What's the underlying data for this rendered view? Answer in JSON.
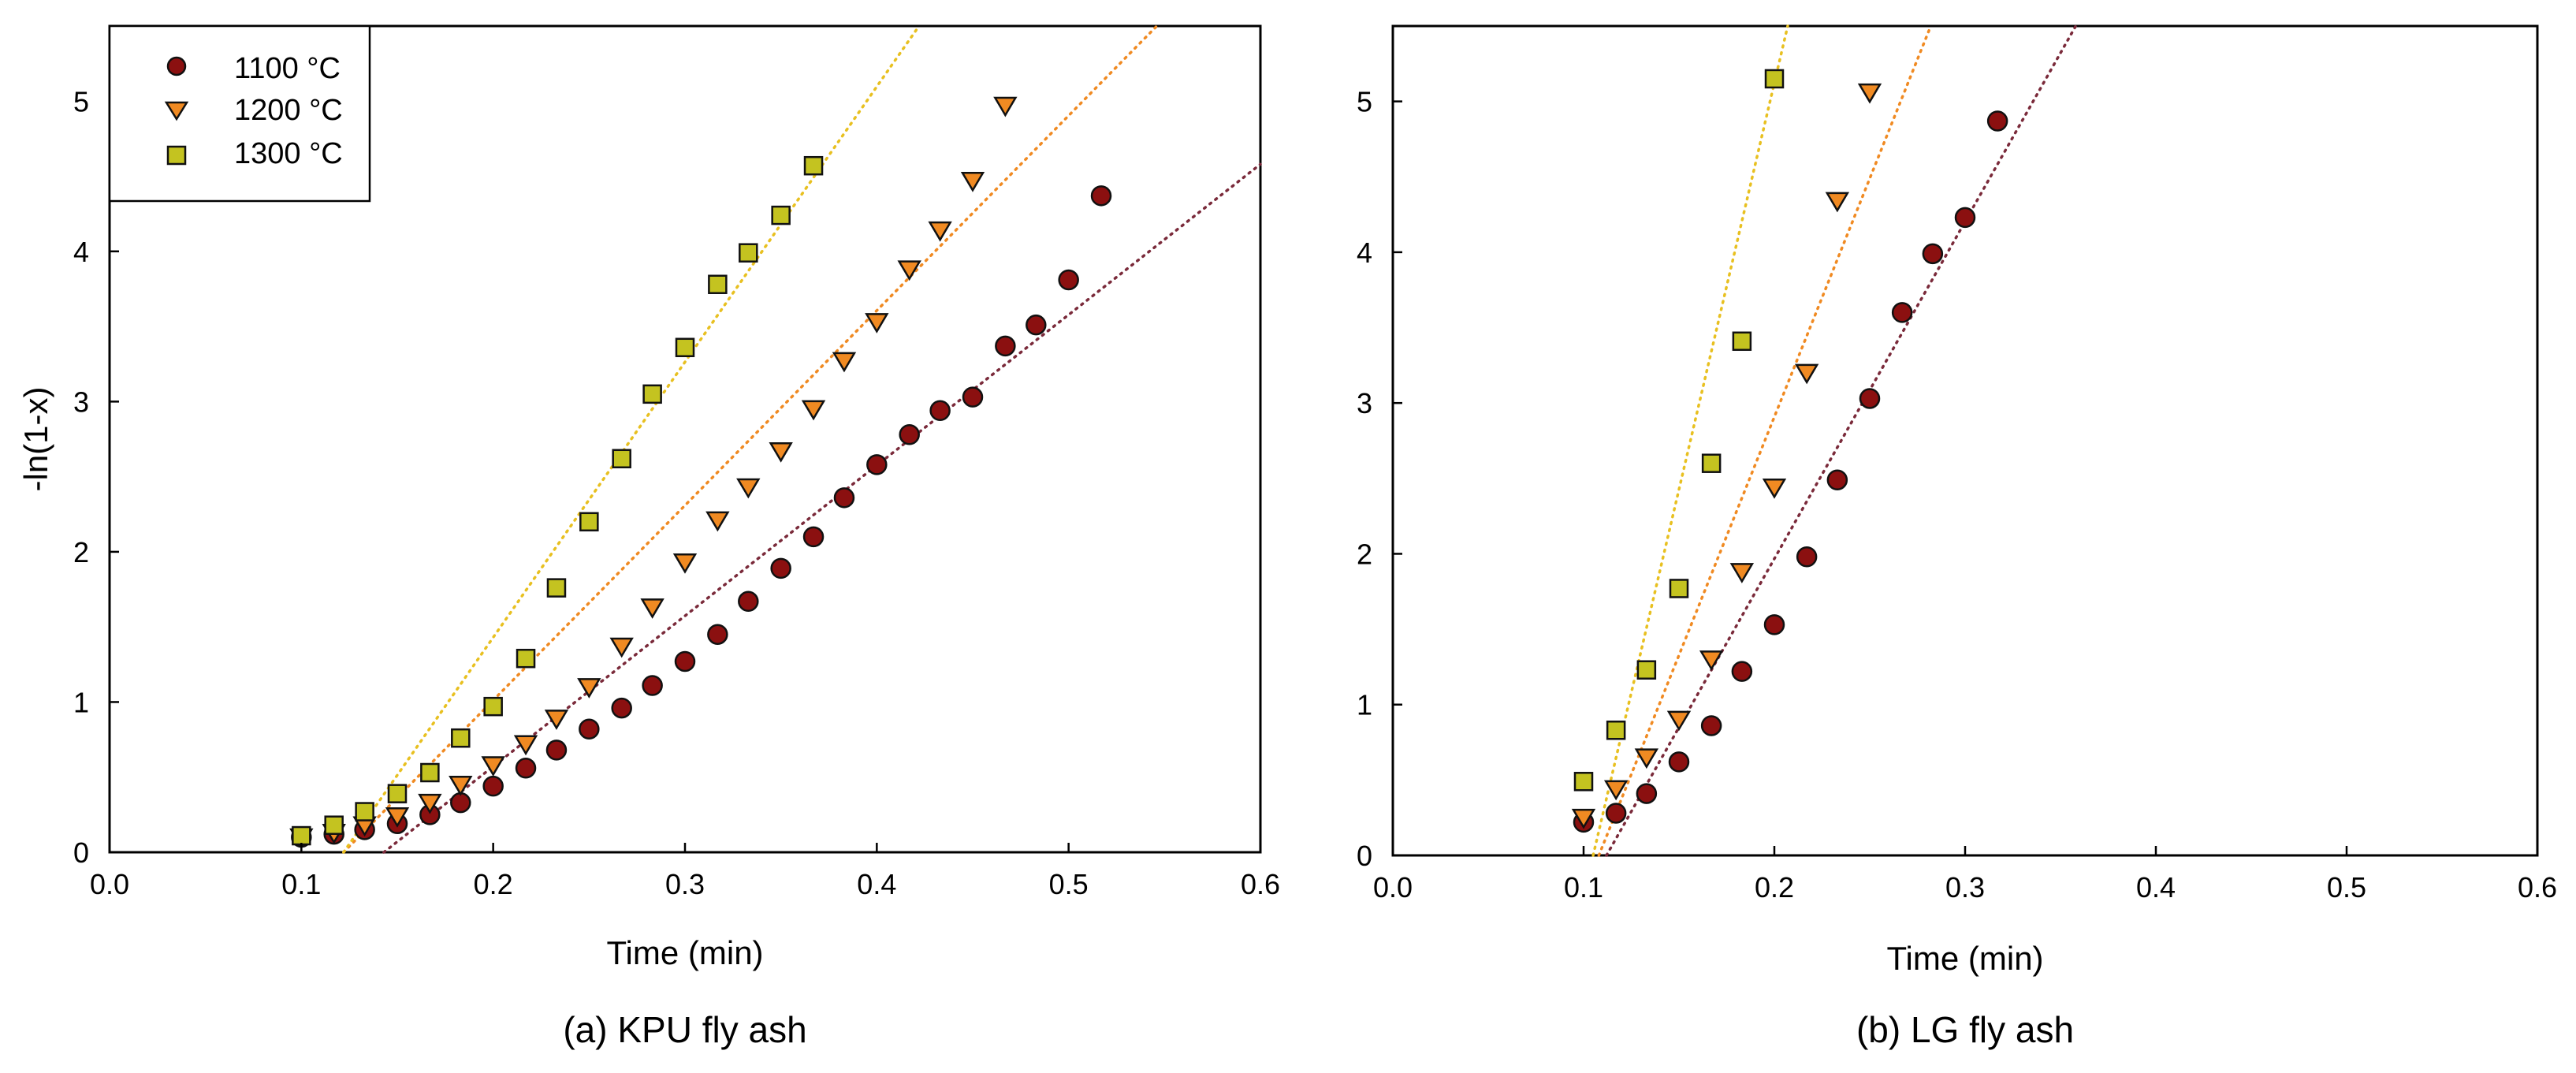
{
  "chart_data": [
    {
      "type": "scatter",
      "caption": "(a) KPU fly ash",
      "xlabel": "Time (min)",
      "ylabel": "-ln(1-x)",
      "xlim": [
        0.0,
        0.6
      ],
      "ylim": [
        0,
        5.5
      ],
      "xticks": [
        "0.0",
        "0.1",
        "0.2",
        "0.3",
        "0.4",
        "0.5",
        "0.6"
      ],
      "yticks": [
        "0",
        "1",
        "2",
        "3",
        "4",
        "5"
      ],
      "legend": {
        "placement": "top-left",
        "entries": [
          "1100 °C",
          "1200 °C",
          "1300 °C"
        ]
      },
      "series": [
        {
          "name": "1100 °C",
          "marker": "circle",
          "color": "#8b1010",
          "x": [
            0.1,
            0.117,
            0.133,
            0.15,
            0.167,
            0.183,
            0.2,
            0.217,
            0.233,
            0.25,
            0.267,
            0.283,
            0.3,
            0.317,
            0.333,
            0.35,
            0.367,
            0.383,
            0.4,
            0.417,
            0.433,
            0.45,
            0.467,
            0.483,
            0.5,
            0.517
          ],
          "y": [
            0.1,
            0.12,
            0.15,
            0.19,
            0.25,
            0.33,
            0.44,
            0.56,
            0.68,
            0.82,
            0.96,
            1.11,
            1.27,
            1.45,
            1.67,
            1.89,
            2.1,
            2.36,
            2.58,
            2.78,
            2.94,
            3.03,
            3.37,
            3.51,
            3.81,
            4.37
          ],
          "fit": {
            "x": [
              0.143,
              0.6
            ],
            "y": [
              0.0,
              4.58
            ]
          }
        },
        {
          "name": "1200 °C",
          "marker": "triangle-down",
          "color": "#f08a22",
          "x": [
            0.1,
            0.117,
            0.133,
            0.15,
            0.167,
            0.183,
            0.2,
            0.217,
            0.233,
            0.25,
            0.267,
            0.283,
            0.3,
            0.317,
            0.333,
            0.35,
            0.367,
            0.383,
            0.4,
            0.417,
            0.433,
            0.45,
            0.467
          ],
          "y": [
            0.1,
            0.13,
            0.18,
            0.24,
            0.33,
            0.45,
            0.58,
            0.72,
            0.89,
            1.1,
            1.37,
            1.63,
            1.93,
            2.21,
            2.43,
            2.67,
            2.95,
            3.27,
            3.53,
            3.88,
            4.14,
            4.47,
            4.97
          ]
        },
        {
          "name": "1300 °C",
          "marker": "square",
          "color": "#c4c320",
          "x": [
            0.1,
            0.117,
            0.133,
            0.15,
            0.167,
            0.183,
            0.2,
            0.217,
            0.233,
            0.25,
            0.267,
            0.283,
            0.3,
            0.317,
            0.333,
            0.35,
            0.367
          ],
          "y": [
            0.11,
            0.18,
            0.27,
            0.39,
            0.53,
            0.76,
            0.97,
            1.29,
            1.76,
            2.2,
            2.62,
            3.05,
            3.36,
            3.78,
            3.99,
            4.24,
            4.57
          ]
        }
      ],
      "fit_lines": [
        {
          "series": "1100 °C",
          "color": "#7a2a3a",
          "x": [
            0.143,
            0.6
          ],
          "y": [
            0.0,
            4.58
          ]
        },
        {
          "series": "1200 °C",
          "color": "#f08a22",
          "x": [
            0.122,
            0.546
          ],
          "y": [
            0.0,
            5.5
          ]
        },
        {
          "series": "1300 °C",
          "color": "#e8c020",
          "x": [
            0.122,
            0.422
          ],
          "y": [
            0.0,
            5.5
          ]
        }
      ]
    },
    {
      "type": "scatter",
      "caption": "(b) LG fly ash",
      "xlabel": "Time (min)",
      "ylabel": "",
      "xlim": [
        0.0,
        0.6
      ],
      "ylim": [
        0,
        5.5
      ],
      "xticks": [
        "0.0",
        "0.1",
        "0.2",
        "0.3",
        "0.4",
        "0.5",
        "0.6"
      ],
      "yticks": [
        "0",
        "1",
        "2",
        "3",
        "4",
        "5"
      ],
      "series": [
        {
          "name": "1100 °C",
          "marker": "circle",
          "color": "#8b1010",
          "x": [
            0.1,
            0.117,
            0.133,
            0.15,
            0.167,
            0.183,
            0.2,
            0.217,
            0.233,
            0.25,
            0.267,
            0.283,
            0.3,
            0.317
          ],
          "y": [
            0.22,
            0.28,
            0.41,
            0.62,
            0.86,
            1.22,
            1.53,
            1.98,
            2.49,
            3.03,
            3.6,
            3.99,
            4.23,
            4.87
          ]
        },
        {
          "name": "1200 °C",
          "marker": "triangle-down",
          "color": "#f08a22",
          "x": [
            0.1,
            0.117,
            0.133,
            0.15,
            0.167,
            0.183,
            0.2,
            0.217,
            0.233,
            0.25
          ],
          "y": [
            0.25,
            0.44,
            0.65,
            0.9,
            1.3,
            1.88,
            2.44,
            3.2,
            4.34,
            5.06
          ]
        },
        {
          "name": "1300 °C",
          "marker": "square",
          "color": "#c4c320",
          "x": [
            0.1,
            0.117,
            0.133,
            0.15,
            0.167,
            0.183,
            0.2
          ],
          "y": [
            0.49,
            0.83,
            1.23,
            1.77,
            2.6,
            3.41,
            5.15
          ]
        }
      ],
      "fit_lines": [
        {
          "series": "1100 °C",
          "color": "#7a2a3a",
          "x": [
            0.112,
            0.358
          ],
          "y": [
            0.0,
            5.5
          ]
        },
        {
          "series": "1200 °C",
          "color": "#f08a22",
          "x": [
            0.108,
            0.282
          ],
          "y": [
            0.0,
            5.5
          ]
        },
        {
          "series": "1300 °C",
          "color": "#e8c020",
          "x": [
            0.105,
            0.207
          ],
          "y": [
            0.0,
            5.5
          ]
        }
      ]
    }
  ]
}
